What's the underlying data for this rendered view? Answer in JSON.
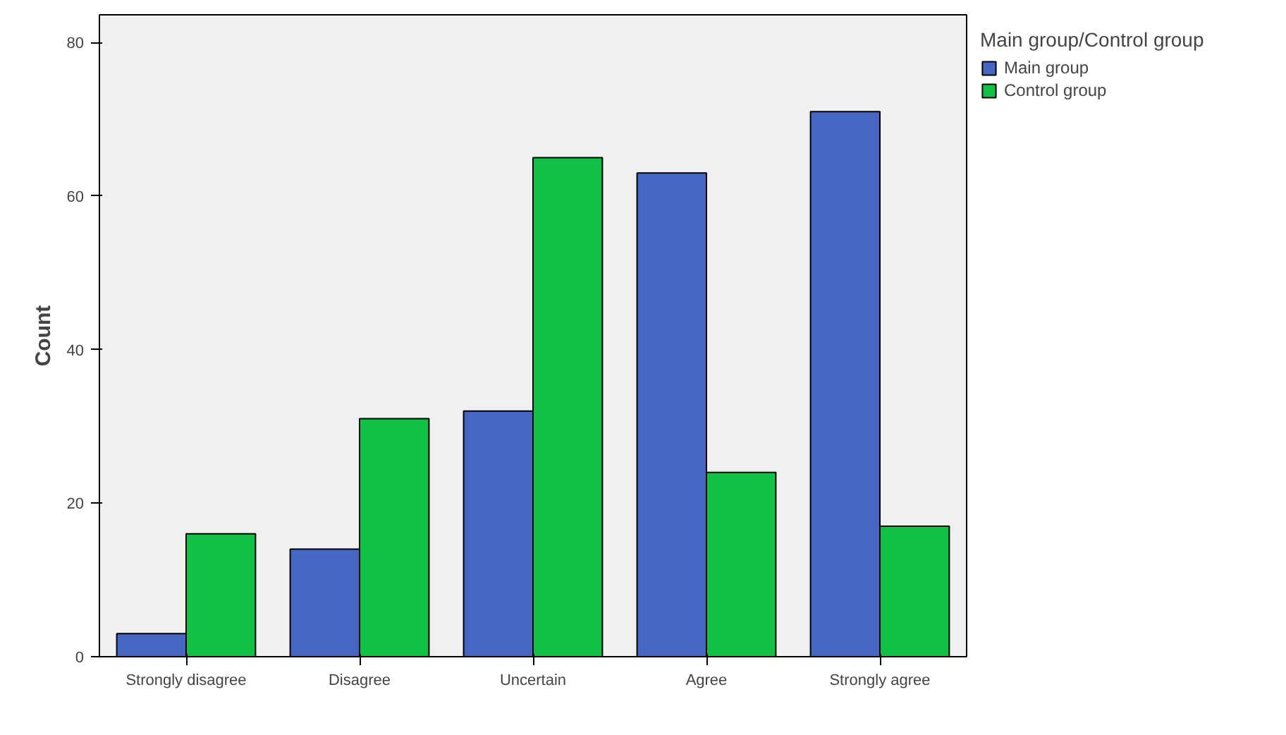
{
  "chart_data": {
    "type": "bar",
    "ylabel": "Count",
    "legend_title": "Main group/Control group",
    "categories": [
      "Strongly disagree",
      "Disagree",
      "Uncertain",
      "Agree",
      "Strongly agree"
    ],
    "series": [
      {
        "name": "Main group",
        "color": "#4766c4",
        "values": [
          3,
          14,
          32,
          63,
          71
        ]
      },
      {
        "name": "Control group",
        "color": "#12c046",
        "values": [
          16,
          31,
          65,
          24,
          17
        ]
      }
    ],
    "ylim": [
      0,
      83.6
    ],
    "yticks": [
      0,
      20,
      40,
      60,
      80
    ],
    "grid": false,
    "legend": "top right"
  }
}
